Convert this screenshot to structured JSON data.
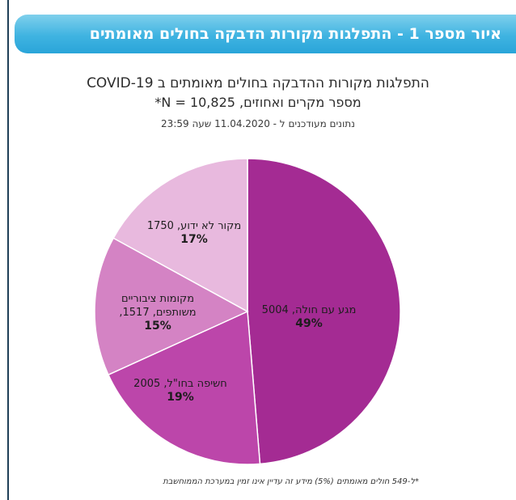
{
  "banner": {
    "title": "איור מספר 1 - התפלגות מקורות הדבקה בחולים מאומתים"
  },
  "chart_data": {
    "type": "pie",
    "title": "התפלגות מקורות ההדבקה בחולים מאומתים ב COVID-19",
    "subtitle": "מספר מקרים ואחוזים, N = 10,825*",
    "note": "נתונים מעודכנים ל - 11.04.2020 שעה 23:59",
    "footnote": "*ל-549 חולים מאומתים (5%) מידע זה עדיין אינו זמין במערכת הממוחשבת",
    "slices": [
      {
        "label": "מגע עם חולה, 5004",
        "value": 5004,
        "percent": "49%",
        "color": "#a42b93"
      },
      {
        "label": "חשיפה בחו\"ל, 2005",
        "value": 2005,
        "percent": "19%",
        "color": "#bc46aa"
      },
      {
        "label_lines": [
          "מקומות ציבוריים",
          "משותפים, 1517,"
        ],
        "value": 1517,
        "percent": "15%",
        "color": "#d483c4"
      },
      {
        "label": "מקור לא ידוע, 1750",
        "value": 1750,
        "percent": "17%",
        "color": "#e8b9de"
      }
    ]
  }
}
